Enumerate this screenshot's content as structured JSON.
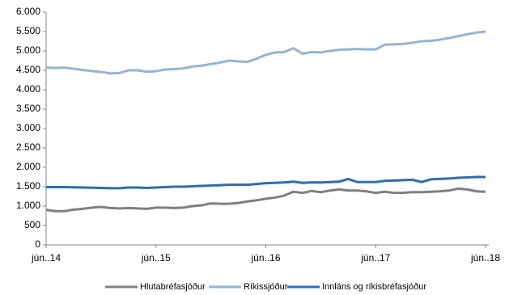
{
  "chart_data": {
    "type": "line",
    "categories": [
      "jún..14",
      null,
      null,
      null,
      null,
      null,
      null,
      null,
      null,
      null,
      null,
      null,
      "jún..15",
      null,
      null,
      null,
      null,
      null,
      null,
      null,
      null,
      null,
      null,
      null,
      "jún..16",
      null,
      null,
      null,
      null,
      null,
      null,
      null,
      null,
      null,
      null,
      null,
      "jún..17",
      null,
      null,
      null,
      null,
      null,
      null,
      null,
      null,
      null,
      null,
      null,
      "jún..18"
    ],
    "series": [
      {
        "name": "Hlutabréfasjóður",
        "color": "#808080",
        "values": [
          900,
          870,
          870,
          910,
          930,
          960,
          980,
          950,
          940,
          950,
          940,
          930,
          960,
          960,
          950,
          960,
          1000,
          1020,
          1070,
          1060,
          1060,
          1080,
          1120,
          1150,
          1190,
          1220,
          1270,
          1370,
          1340,
          1390,
          1360,
          1400,
          1430,
          1400,
          1400,
          1380,
          1340,
          1370,
          1340,
          1340,
          1360,
          1360,
          1370,
          1380,
          1400,
          1450,
          1430,
          1380,
          1370
        ]
      },
      {
        "name": "Ríkissjóður",
        "color": "#95b3d7",
        "values": [
          4570,
          4560,
          4570,
          4540,
          4510,
          4480,
          4460,
          4420,
          4430,
          4500,
          4500,
          4460,
          4480,
          4520,
          4530,
          4550,
          4600,
          4620,
          4660,
          4700,
          4750,
          4730,
          4720,
          4800,
          4900,
          4960,
          4970,
          5070,
          4930,
          4970,
          4960,
          5000,
          5030,
          5040,
          5050,
          5040,
          5040,
          5160,
          5170,
          5180,
          5210,
          5250,
          5260,
          5290,
          5330,
          5380,
          5430,
          5470,
          5500
        ]
      },
      {
        "name": "Innláns og ríkisbréfasjóður",
        "color": "#2e6db4",
        "values": [
          1490,
          1490,
          1490,
          1485,
          1480,
          1475,
          1470,
          1460,
          1460,
          1480,
          1480,
          1470,
          1480,
          1490,
          1500,
          1500,
          1510,
          1520,
          1530,
          1540,
          1550,
          1550,
          1550,
          1570,
          1590,
          1600,
          1610,
          1630,
          1600,
          1610,
          1610,
          1620,
          1630,
          1700,
          1620,
          1620,
          1620,
          1650,
          1660,
          1670,
          1680,
          1620,
          1690,
          1700,
          1710,
          1730,
          1740,
          1750,
          1750
        ]
      }
    ],
    "ylim": [
      0,
      6000
    ],
    "yticks": [
      0,
      500,
      {
        "value": 1000,
        "label": "1.000"
      },
      {
        "value": 1500,
        "label": "1.500"
      },
      {
        "value": 2000,
        "label": "2.000"
      },
      {
        "value": 2500,
        "label": "2.500"
      },
      {
        "value": 3000,
        "label": "3.000"
      },
      {
        "value": 3500,
        "label": "3.500"
      },
      {
        "value": 4000,
        "label": "4.000"
      },
      {
        "value": 4500,
        "label": "4.500"
      },
      {
        "value": 5000,
        "label": "5.000"
      },
      {
        "value": 5500,
        "label": "5.500"
      },
      {
        "value": 6000,
        "label": "6.000"
      }
    ],
    "grid": false,
    "legend": "bottom"
  }
}
